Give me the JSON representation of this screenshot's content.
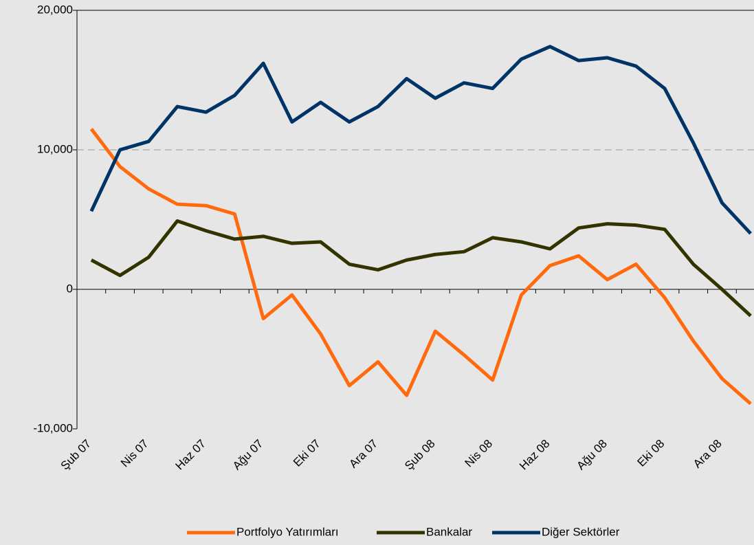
{
  "chart_data": {
    "type": "line",
    "categories": [
      "Şub 07",
      null,
      "Nis 07",
      null,
      "Haz 07",
      null,
      "Ağu 07",
      null,
      "Eki 07",
      null,
      "Ara 07",
      null,
      "Şub 08",
      null,
      "Nis 08",
      null,
      "Haz 08",
      null,
      "Ağu 08",
      null,
      "Eki 08",
      null,
      "Ara 08",
      null
    ],
    "series": [
      {
        "name": "Portfolyo Yatırımları",
        "color": "#ff6a0e",
        "values": [
          11500,
          8800,
          7200,
          6100,
          6000,
          5400,
          -2100,
          -400,
          -3200,
          -6900,
          -5200,
          -7600,
          -3000,
          -4700,
          -6500,
          -400,
          1700,
          2400,
          700,
          1800,
          -600,
          -3700,
          -6400,
          -8200
        ]
      },
      {
        "name": "Bankalar",
        "color": "#333300",
        "values": [
          2100,
          1000,
          2300,
          4900,
          4200,
          3600,
          3800,
          3300,
          3400,
          1800,
          1400,
          2100,
          2500,
          2700,
          3700,
          3400,
          2900,
          4400,
          4700,
          4600,
          4300,
          1800,
          0,
          -1900
        ]
      },
      {
        "name": "Diğer Sektörler",
        "color": "#003366",
        "values": [
          5600,
          10000,
          10600,
          13100,
          12700,
          13900,
          16200,
          12000,
          13400,
          12000,
          13100,
          15100,
          13700,
          14800,
          14400,
          16500,
          17400,
          16400,
          16600,
          16000,
          14400,
          10500,
          6200,
          4000
        ]
      }
    ],
    "ylim": [
      -10000,
      20000
    ],
    "yticks": [
      {
        "value": -10000,
        "label": "-10,000"
      },
      0,
      {
        "value": 10000,
        "label": "10,000"
      },
      {
        "value": 20000,
        "label": "20,000"
      }
    ],
    "grid": true,
    "legend": "bottom"
  }
}
